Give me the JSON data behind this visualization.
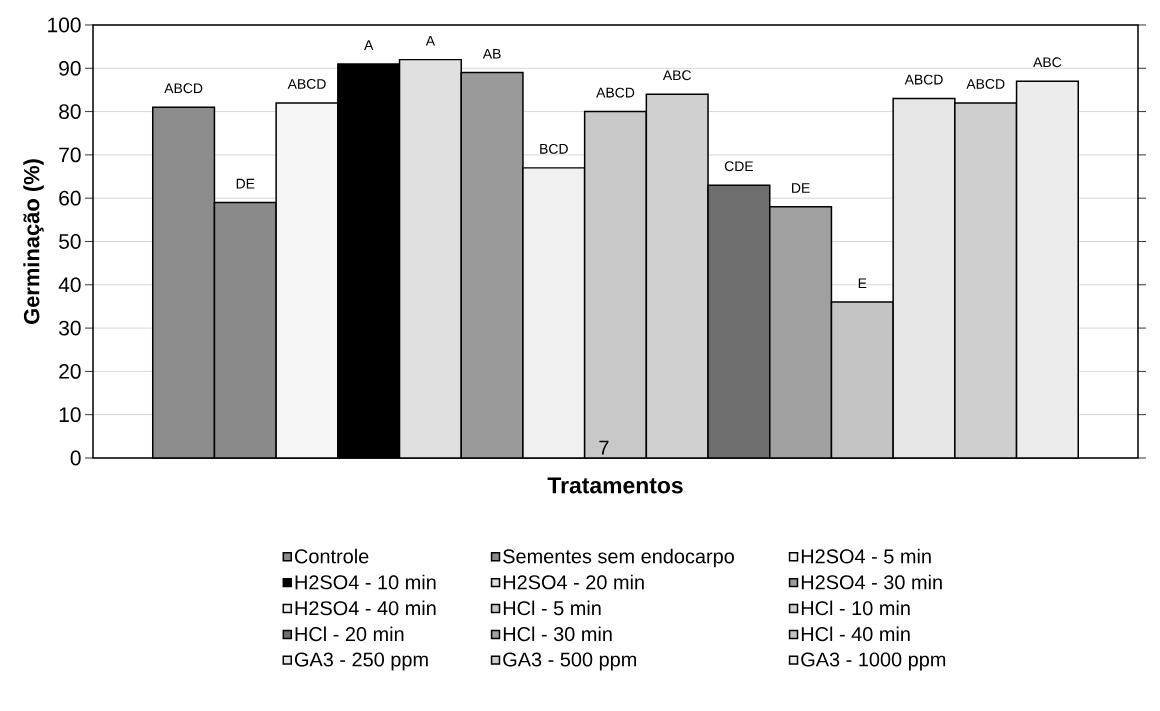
{
  "chart_data": {
    "type": "bar",
    "xlabel": "Tratamentos",
    "ylabel": "Germinação (%)",
    "categories": [
      null
    ],
    "ylim": [
      0,
      100
    ],
    "yticks": [
      0,
      10,
      20,
      30,
      40,
      50,
      60,
      70,
      80,
      90,
      100
    ],
    "grid": "y",
    "legend": "bottom",
    "annotations": [
      "7"
    ],
    "series": [
      {
        "name": "Controle",
        "color": "#8c8c8c",
        "values": [
          81
        ],
        "value_labels": [
          "ABCD"
        ]
      },
      {
        "name": "Sementes sem endocarpo",
        "color": "#8a8a8a",
        "values": [
          59
        ],
        "value_labels": [
          "DE"
        ]
      },
      {
        "name": "H2SO4 - 5 min",
        "color": "#f5f5f5",
        "values": [
          82
        ],
        "value_labels": [
          "ABCD"
        ]
      },
      {
        "name": "H2SO4 - 10 min",
        "color": "#000000",
        "values": [
          91
        ],
        "value_labels": [
          "A"
        ]
      },
      {
        "name": "H2SO4 - 20 min",
        "color": "#e0e0e0",
        "values": [
          92
        ],
        "value_labels": [
          "A"
        ]
      },
      {
        "name": "H2SO4 - 30 min",
        "color": "#9a9a9a",
        "values": [
          89
        ],
        "value_labels": [
          "AB"
        ]
      },
      {
        "name": "H2SO4 - 40 min",
        "color": "#f0f0f0",
        "values": [
          67
        ],
        "value_labels": [
          "BCD"
        ]
      },
      {
        "name": "HCl - 5 min",
        "color": "#c8c8c8",
        "values": [
          80
        ],
        "value_labels": [
          "ABCD"
        ]
      },
      {
        "name": "HCl - 10 min",
        "color": "#d0d0d0",
        "values": [
          84
        ],
        "value_labels": [
          "ABC"
        ]
      },
      {
        "name": "HCl - 20 min",
        "color": "#6e6e6e",
        "values": [
          63
        ],
        "value_labels": [
          "CDE"
        ]
      },
      {
        "name": "HCl - 30 min",
        "color": "#a0a0a0",
        "values": [
          58
        ],
        "value_labels": [
          "DE"
        ]
      },
      {
        "name": "HCl - 40 min",
        "color": "#c4c4c4",
        "values": [
          36
        ],
        "value_labels": [
          "E"
        ]
      },
      {
        "name": "GA3 - 250 ppm",
        "color": "#e6e6e6",
        "values": [
          83
        ],
        "value_labels": [
          "ABCD"
        ]
      },
      {
        "name": "GA3 - 500 ppm",
        "color": "#cfcfcf",
        "values": [
          82
        ],
        "value_labels": [
          "ABCD"
        ]
      },
      {
        "name": "GA3 - 1000 ppm",
        "color": "#ececec",
        "values": [
          87
        ],
        "value_labels": [
          "ABC"
        ]
      }
    ]
  }
}
